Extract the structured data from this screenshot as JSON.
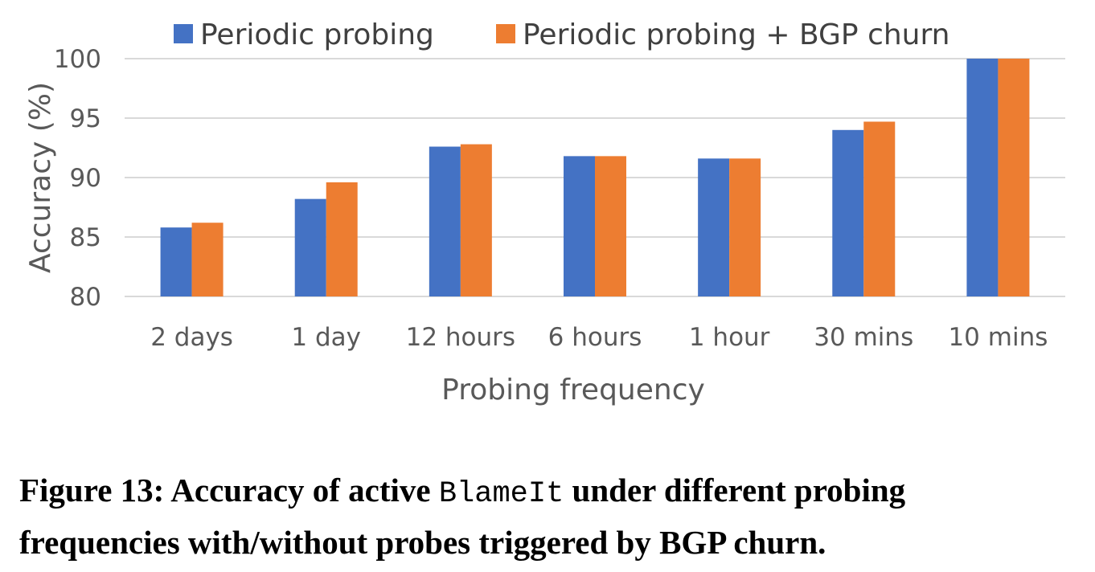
{
  "chart_data": {
    "type": "bar",
    "categories": [
      "2 days",
      "1 day",
      "12 hours",
      "6 hours",
      "1 hour",
      "30 mins",
      "10 mins"
    ],
    "series": [
      {
        "name": "Periodic probing",
        "values": [
          85.8,
          88.2,
          92.6,
          91.8,
          91.6,
          94.0,
          100
        ],
        "color": "#4472C4"
      },
      {
        "name": "Periodic probing + BGP churn",
        "values": [
          86.2,
          89.6,
          92.8,
          91.8,
          91.6,
          94.7,
          100
        ],
        "color": "#ED7D31"
      }
    ],
    "xlabel": "Probing frequency",
    "ylabel": "Accuracy (%)",
    "ylim": [
      80,
      100
    ],
    "yticks": [
      80,
      85,
      90,
      95,
      100
    ],
    "grid": true,
    "legend": "top"
  },
  "caption": {
    "prefix": "Figure 13: Accuracy of active ",
    "system": "BlameIt",
    "line1_suffix": " under different probing",
    "line2": "frequencies with/without probes triggered by BGP churn."
  }
}
